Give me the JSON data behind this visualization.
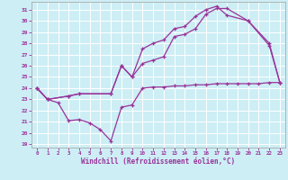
{
  "xlabel": "Windchill (Refroidissement éolien,°C)",
  "bg_color": "#cdeef5",
  "line_color": "#993399",
  "xlim": [
    -0.5,
    23.5
  ],
  "ylim": [
    18.7,
    31.7
  ],
  "yticks": [
    19,
    20,
    21,
    22,
    23,
    24,
    25,
    26,
    27,
    28,
    29,
    30,
    31
  ],
  "xticks": [
    0,
    1,
    2,
    3,
    4,
    5,
    6,
    7,
    8,
    9,
    10,
    11,
    12,
    13,
    14,
    15,
    16,
    17,
    18,
    19,
    20,
    21,
    22,
    23
  ],
  "line1_x": [
    0,
    1,
    2,
    3,
    4,
    5,
    6,
    7,
    8,
    9,
    10,
    11,
    12,
    13,
    14,
    15,
    16,
    17,
    18,
    19,
    20,
    21,
    22,
    23
  ],
  "line1_y": [
    24.0,
    23.0,
    22.7,
    21.1,
    21.2,
    20.9,
    20.3,
    19.3,
    22.3,
    22.5,
    24.0,
    24.1,
    24.1,
    24.2,
    24.2,
    24.3,
    24.3,
    24.4,
    24.4,
    24.4,
    24.4,
    24.4,
    24.5,
    24.5
  ],
  "line2_x": [
    0,
    1,
    3,
    4,
    7,
    8,
    9,
    10,
    11,
    12,
    13,
    14,
    15,
    16,
    17,
    18,
    20,
    22,
    23
  ],
  "line2_y": [
    24.0,
    23.0,
    23.3,
    23.5,
    23.5,
    26.0,
    25.0,
    27.5,
    28.0,
    28.3,
    29.3,
    29.5,
    30.4,
    31.0,
    31.3,
    30.5,
    30.0,
    28.0,
    24.5
  ],
  "line3_x": [
    0,
    1,
    3,
    4,
    7,
    8,
    9,
    10,
    11,
    12,
    13,
    14,
    15,
    16,
    17,
    18,
    20,
    22,
    23
  ],
  "line3_y": [
    24.0,
    23.0,
    23.3,
    23.5,
    23.5,
    26.0,
    25.0,
    26.2,
    26.5,
    26.8,
    28.6,
    28.8,
    29.3,
    30.6,
    31.1,
    31.1,
    30.0,
    27.8,
    24.5
  ]
}
